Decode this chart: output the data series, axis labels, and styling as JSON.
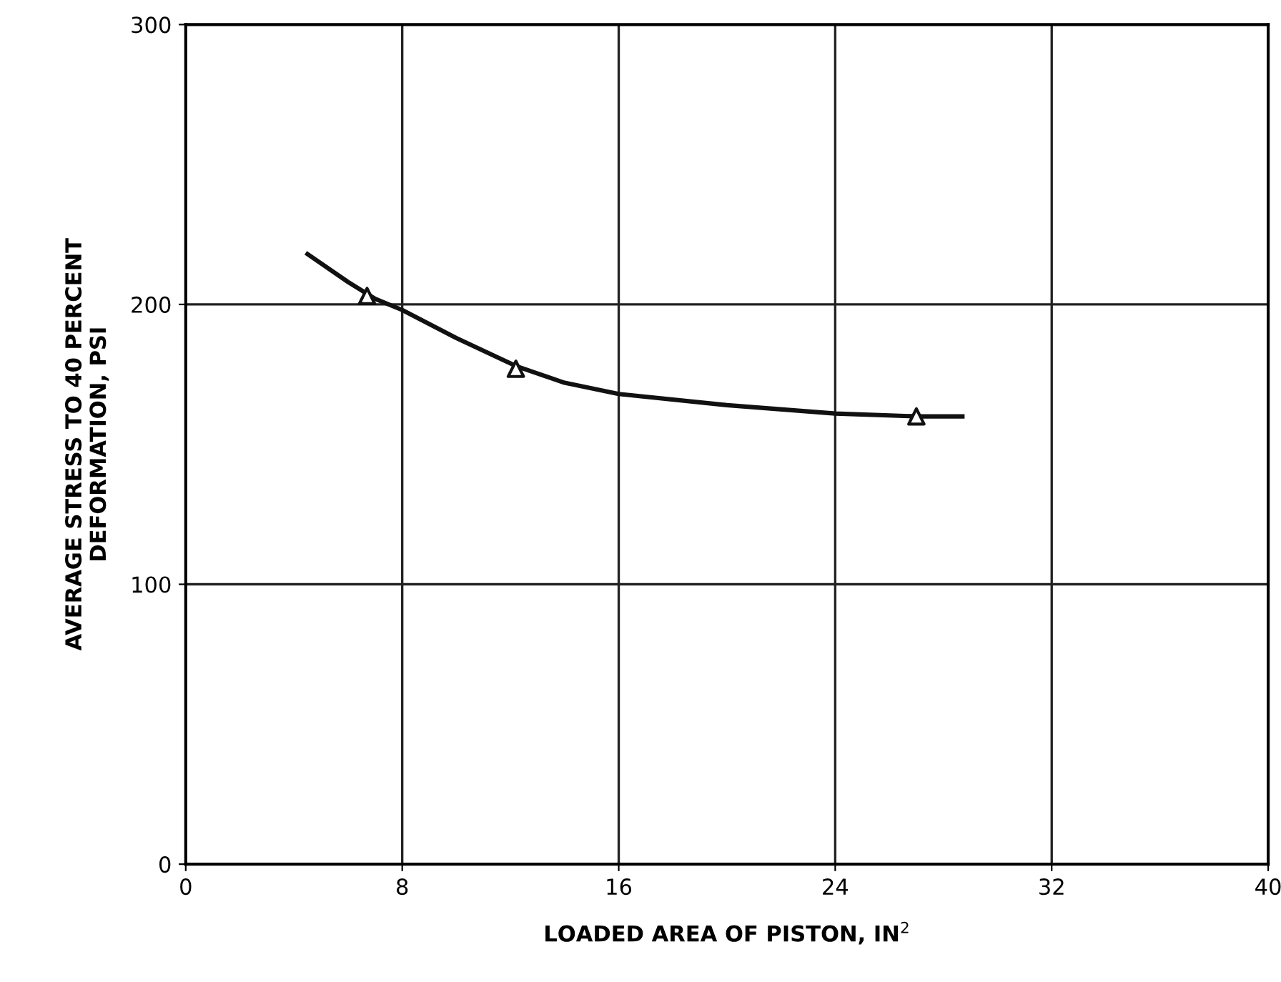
{
  "chart_data": {
    "type": "line",
    "xlabel": "LOADED AREA OF PISTON, IN$^{2}$",
    "ylabel": "AVERAGE STRESS TO 40 PERCENT\nDEFORMATION, PSI",
    "series": [
      {
        "color": "#111111",
        "marker": "none",
        "x": [
          4.5,
          6.0,
          7.0,
          8.0,
          10.0,
          12.2,
          14.0,
          16.0,
          20.0,
          24.0,
          27.0,
          28.7
        ],
        "values": [
          218,
          208,
          202,
          198,
          188,
          178,
          172,
          168,
          164,
          161,
          160,
          160
        ]
      },
      {
        "type": "scatter",
        "color": "#111111",
        "marker": "triangle",
        "x": [
          6.7,
          12.2,
          27.0
        ],
        "values": [
          203,
          177,
          160
        ]
      }
    ],
    "xlim": [
      0,
      40
    ],
    "xticks": [
      0,
      8,
      16,
      24,
      32,
      40
    ],
    "ylim": [
      0,
      300
    ],
    "yticks": [
      0,
      100,
      200,
      300
    ],
    "grid": true,
    "line_style": "solid"
  }
}
